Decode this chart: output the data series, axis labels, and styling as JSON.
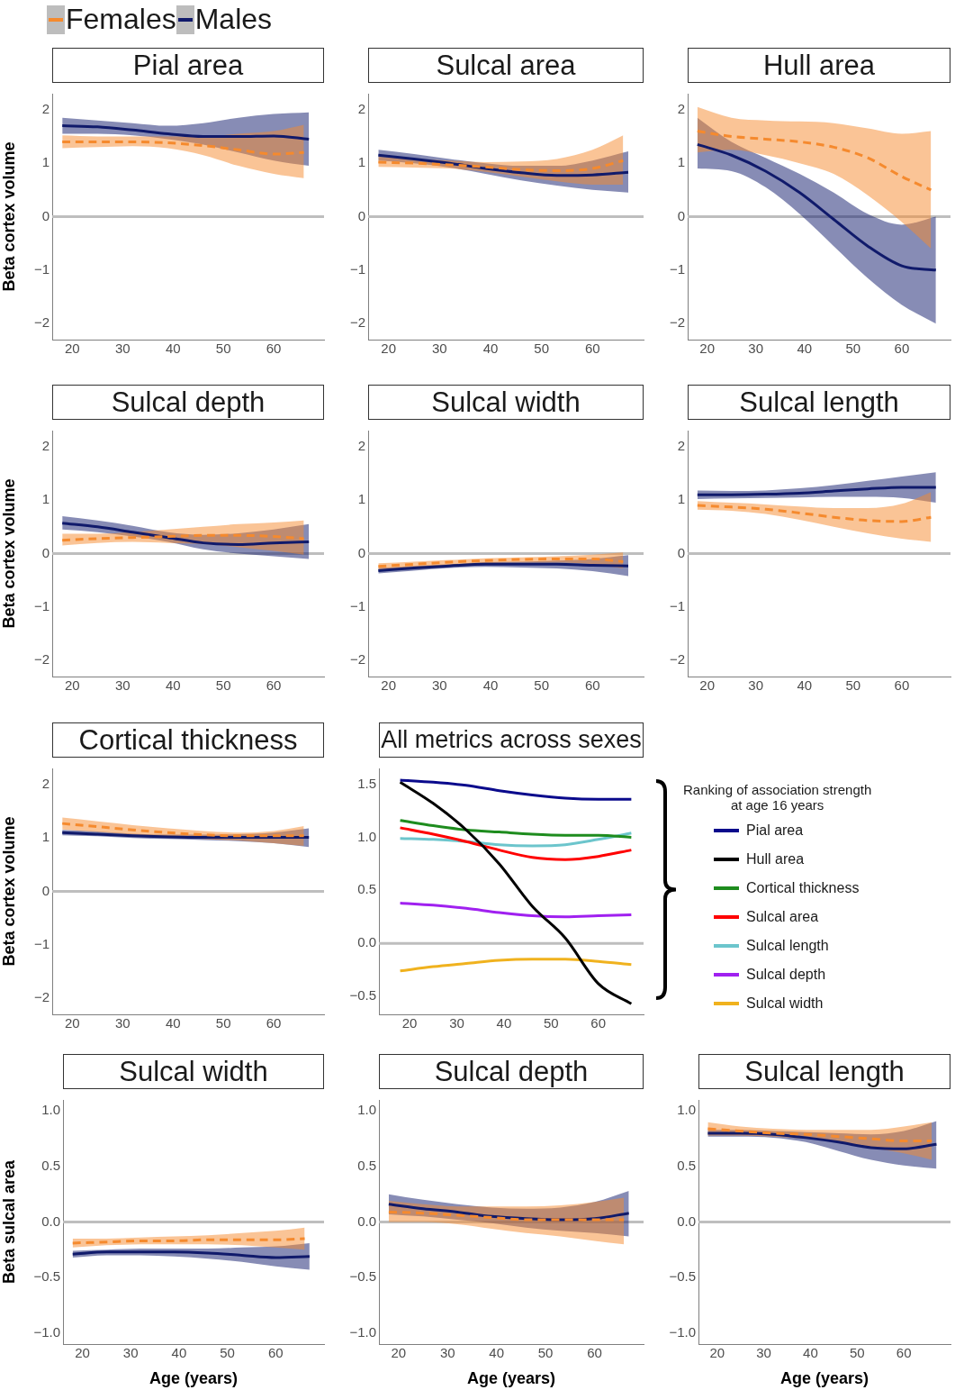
{
  "chart_data": [
    {
      "type": "line",
      "title": "Pial area",
      "ylabel": "Beta cortex volume",
      "legend": "top left",
      "marker": "none",
      "xlim": [
        16,
        70
      ],
      "xticks": [
        20,
        30,
        40,
        50,
        60
      ],
      "ylim": [
        -2.3,
        2.3
      ],
      "yticks": [
        {
          "value": -2,
          "label": "−2"
        },
        {
          "value": -1,
          "label": "−1"
        },
        0,
        1,
        2
      ],
      "ref_lines": [
        {
          "axis": "y",
          "value": 0,
          "color": "#bebebe"
        }
      ],
      "series": [
        {
          "name": "Females",
          "color": "#f58a2e",
          "line_style": "dashed",
          "x": [
            18,
            25,
            32,
            39,
            46,
            53,
            60,
            66
          ],
          "values": [
            1.4,
            1.4,
            1.4,
            1.38,
            1.33,
            1.25,
            1.17,
            1.2
          ],
          "lower": [
            1.28,
            1.3,
            1.32,
            1.28,
            1.15,
            0.95,
            0.8,
            0.72
          ],
          "upper": [
            1.52,
            1.5,
            1.5,
            1.5,
            1.5,
            1.55,
            1.6,
            1.72
          ]
        },
        {
          "name": "Males",
          "color": "#101a6b",
          "line_style": "solid",
          "x": [
            18,
            25,
            32,
            39,
            46,
            53,
            60,
            67
          ],
          "values": [
            1.7,
            1.68,
            1.62,
            1.55,
            1.5,
            1.5,
            1.51,
            1.45
          ],
          "lower": [
            1.55,
            1.55,
            1.52,
            1.45,
            1.35,
            1.2,
            1.05,
            0.95
          ],
          "upper": [
            1.85,
            1.8,
            1.75,
            1.7,
            1.75,
            1.85,
            1.92,
            1.95
          ]
        }
      ]
    },
    {
      "type": "line",
      "title": "Sulcal area",
      "marker": "none",
      "xlim": [
        16,
        70
      ],
      "xticks": [
        20,
        30,
        40,
        50,
        60
      ],
      "ylim": [
        -2.3,
        2.3
      ],
      "yticks": [
        {
          "value": -2,
          "label": "−2"
        },
        {
          "value": -1,
          "label": "−1"
        },
        0,
        1,
        2
      ],
      "ref_lines": [
        {
          "axis": "y",
          "value": 0,
          "color": "#bebebe"
        }
      ],
      "series": [
        {
          "color": "#f58a2e",
          "line_style": "dashed",
          "x": [
            18,
            25,
            32,
            39,
            46,
            53,
            60,
            66
          ],
          "values": [
            1.02,
            1.0,
            0.97,
            0.93,
            0.88,
            0.86,
            0.9,
            1.05
          ],
          "lower": [
            0.93,
            0.92,
            0.9,
            0.84,
            0.75,
            0.66,
            0.6,
            0.6
          ],
          "upper": [
            1.12,
            1.08,
            1.05,
            1.02,
            1.03,
            1.08,
            1.25,
            1.52
          ]
        },
        {
          "color": "#101a6b",
          "line_style": "solid",
          "x": [
            18,
            25,
            32,
            39,
            46,
            53,
            60,
            67
          ],
          "values": [
            1.15,
            1.08,
            1.0,
            0.9,
            0.82,
            0.77,
            0.78,
            0.83
          ],
          "lower": [
            1.05,
            1.0,
            0.92,
            0.8,
            0.68,
            0.58,
            0.5,
            0.45
          ],
          "upper": [
            1.25,
            1.17,
            1.08,
            1.0,
            0.95,
            0.95,
            1.05,
            1.22
          ]
        }
      ]
    },
    {
      "type": "line",
      "title": "Hull area",
      "marker": "none",
      "xlim": [
        16,
        70
      ],
      "xticks": [
        20,
        30,
        40,
        50,
        60
      ],
      "ylim": [
        -2.3,
        2.3
      ],
      "yticks": [
        {
          "value": -2,
          "label": "−2"
        },
        {
          "value": -1,
          "label": "−1"
        },
        0,
        1,
        2
      ],
      "ref_lines": [
        {
          "axis": "y",
          "value": 0,
          "color": "#bebebe"
        }
      ],
      "series": [
        {
          "color": "#f58a2e",
          "line_style": "dashed",
          "x": [
            18,
            25,
            32,
            39,
            46,
            53,
            60,
            66
          ],
          "values": [
            1.6,
            1.5,
            1.45,
            1.4,
            1.3,
            1.1,
            0.75,
            0.5
          ],
          "lower": [
            1.2,
            1.25,
            1.15,
            1.0,
            0.8,
            0.4,
            -0.1,
            -0.6
          ],
          "upper": [
            2.05,
            1.85,
            1.8,
            1.78,
            1.75,
            1.65,
            1.55,
            1.6
          ]
        },
        {
          "color": "#101a6b",
          "line_style": "solid",
          "x": [
            18,
            25,
            32,
            39,
            46,
            53,
            60,
            67
          ],
          "values": [
            1.35,
            1.15,
            0.85,
            0.45,
            -0.05,
            -0.55,
            -0.92,
            -1.0
          ],
          "lower": [
            0.9,
            0.85,
            0.55,
            0.05,
            -0.55,
            -1.15,
            -1.65,
            -2.0
          ],
          "upper": [
            1.85,
            1.4,
            1.1,
            0.8,
            0.45,
            0.05,
            -0.15,
            0.0
          ]
        }
      ]
    },
    {
      "type": "line",
      "title": "Sulcal depth",
      "ylabel": "Beta cortex volume",
      "marker": "none",
      "xlim": [
        16,
        70
      ],
      "xticks": [
        20,
        30,
        40,
        50,
        60
      ],
      "ylim": [
        -2.3,
        2.3
      ],
      "yticks": [
        {
          "value": -2,
          "label": "−2"
        },
        {
          "value": -1,
          "label": "−1"
        },
        0,
        1,
        2
      ],
      "ref_lines": [
        {
          "axis": "y",
          "value": 0,
          "color": "#bebebe"
        }
      ],
      "series": [
        {
          "color": "#f58a2e",
          "line_style": "dashed",
          "x": [
            18,
            25,
            32,
            39,
            46,
            53,
            60,
            66
          ],
          "values": [
            0.25,
            0.28,
            0.3,
            0.32,
            0.34,
            0.34,
            0.32,
            0.28
          ],
          "lower": [
            0.15,
            0.2,
            0.22,
            0.2,
            0.18,
            0.12,
            0.05,
            -0.02
          ],
          "upper": [
            0.37,
            0.37,
            0.4,
            0.45,
            0.5,
            0.55,
            0.58,
            0.62
          ]
        },
        {
          "color": "#101a6b",
          "line_style": "solid",
          "x": [
            18,
            25,
            32,
            39,
            46,
            53,
            60,
            67
          ],
          "values": [
            0.57,
            0.5,
            0.4,
            0.3,
            0.2,
            0.17,
            0.2,
            0.22
          ],
          "lower": [
            0.45,
            0.4,
            0.32,
            0.22,
            0.08,
            0.0,
            -0.05,
            -0.1
          ],
          "upper": [
            0.7,
            0.62,
            0.52,
            0.4,
            0.35,
            0.38,
            0.45,
            0.55
          ]
        }
      ]
    },
    {
      "type": "line",
      "title": "Sulcal width",
      "marker": "none",
      "xlim": [
        16,
        70
      ],
      "xticks": [
        20,
        30,
        40,
        50,
        60
      ],
      "ylim": [
        -2.3,
        2.3
      ],
      "yticks": [
        {
          "value": -2,
          "label": "−2"
        },
        {
          "value": -1,
          "label": "−1"
        },
        0,
        1,
        2
      ],
      "ref_lines": [
        {
          "axis": "y",
          "value": 0,
          "color": "#bebebe"
        }
      ],
      "series": [
        {
          "color": "#f58a2e",
          "line_style": "dashed",
          "x": [
            18,
            25,
            32,
            39,
            46,
            53,
            60,
            66
          ],
          "values": [
            -0.24,
            -0.2,
            -0.16,
            -0.13,
            -0.11,
            -0.1,
            -0.1,
            -0.15
          ],
          "lower": [
            -0.3,
            -0.26,
            -0.22,
            -0.18,
            -0.17,
            -0.17,
            -0.2,
            -0.28
          ],
          "upper": [
            -0.18,
            -0.15,
            -0.12,
            -0.09,
            -0.07,
            -0.05,
            -0.02,
            0.02
          ]
        },
        {
          "color": "#101a6b",
          "line_style": "solid",
          "x": [
            18,
            25,
            32,
            39,
            46,
            53,
            60,
            67
          ],
          "values": [
            -0.32,
            -0.27,
            -0.23,
            -0.2,
            -0.2,
            -0.2,
            -0.22,
            -0.23
          ],
          "lower": [
            -0.37,
            -0.32,
            -0.27,
            -0.25,
            -0.26,
            -0.28,
            -0.33,
            -0.42
          ],
          "upper": [
            -0.27,
            -0.23,
            -0.2,
            -0.16,
            -0.15,
            -0.13,
            -0.1,
            -0.03
          ]
        }
      ]
    },
    {
      "type": "line",
      "title": "Sulcal length",
      "marker": "none",
      "xlim": [
        16,
        70
      ],
      "xticks": [
        20,
        30,
        40,
        50,
        60
      ],
      "ylim": [
        -2.3,
        2.3
      ],
      "yticks": [
        {
          "value": -2,
          "label": "−2"
        },
        {
          "value": -1,
          "label": "−1"
        },
        0,
        1,
        2
      ],
      "ref_lines": [
        {
          "axis": "y",
          "value": 0,
          "color": "#bebebe"
        }
      ],
      "series": [
        {
          "color": "#f58a2e",
          "line_style": "dashed",
          "x": [
            18,
            25,
            32,
            39,
            46,
            53,
            60,
            66
          ],
          "values": [
            0.9,
            0.87,
            0.83,
            0.76,
            0.68,
            0.62,
            0.6,
            0.68
          ],
          "lower": [
            0.82,
            0.8,
            0.74,
            0.63,
            0.5,
            0.38,
            0.28,
            0.22
          ],
          "upper": [
            0.98,
            0.95,
            0.92,
            0.88,
            0.85,
            0.85,
            0.93,
            1.15
          ]
        },
        {
          "color": "#101a6b",
          "line_style": "solid",
          "x": [
            18,
            25,
            32,
            39,
            46,
            53,
            60,
            67
          ],
          "values": [
            1.1,
            1.1,
            1.11,
            1.13,
            1.17,
            1.21,
            1.24,
            1.24
          ],
          "lower": [
            1.02,
            1.03,
            1.04,
            1.05,
            1.06,
            1.06,
            1.04,
            0.95
          ],
          "upper": [
            1.18,
            1.17,
            1.18,
            1.22,
            1.28,
            1.36,
            1.44,
            1.52
          ]
        }
      ]
    },
    {
      "type": "line",
      "title": "Cortical thickness",
      "ylabel": "Beta cortex volume",
      "marker": "none",
      "xlim": [
        16,
        70
      ],
      "xticks": [
        20,
        30,
        40,
        50,
        60
      ],
      "ylim": [
        -2.3,
        2.3
      ],
      "yticks": [
        {
          "value": -2,
          "label": "−2"
        },
        {
          "value": -1,
          "label": "−1"
        },
        0,
        1,
        2
      ],
      "ref_lines": [
        {
          "axis": "y",
          "value": 0,
          "color": "#bebebe"
        }
      ],
      "series": [
        {
          "color": "#f58a2e",
          "line_style": "dashed",
          "x": [
            18,
            25,
            32,
            39,
            46,
            53,
            60,
            66
          ],
          "values": [
            1.27,
            1.21,
            1.15,
            1.1,
            1.06,
            1.04,
            1.04,
            1.04
          ],
          "lower": [
            1.16,
            1.11,
            1.06,
            1.02,
            0.98,
            0.95,
            0.9,
            0.85
          ],
          "upper": [
            1.38,
            1.31,
            1.24,
            1.18,
            1.13,
            1.1,
            1.13,
            1.22
          ]
        },
        {
          "color": "#101a6b",
          "line_style": "solid",
          "x": [
            18,
            25,
            32,
            39,
            46,
            53,
            60,
            67
          ],
          "values": [
            1.1,
            1.07,
            1.04,
            1.02,
            1.01,
            1.01,
            1.01,
            1.01
          ],
          "lower": [
            1.05,
            1.03,
            1.0,
            0.98,
            0.96,
            0.94,
            0.9,
            0.83
          ],
          "upper": [
            1.15,
            1.12,
            1.08,
            1.06,
            1.06,
            1.07,
            1.1,
            1.18
          ]
        }
      ]
    },
    {
      "type": "line",
      "title": "All metrics across sexes",
      "legend": "right",
      "legend_title": "Ranking of association strength\nat age 16 years",
      "marker": "none",
      "xlim": [
        13.5,
        69.6
      ],
      "xticks": [
        20,
        30,
        40,
        50,
        60
      ],
      "ylim": [
        -0.67,
        1.65
      ],
      "yticks": [
        {
          "value": -0.5,
          "label": "−0.5"
        },
        {
          "value": 0,
          "label": "0.0"
        },
        {
          "value": 0.5,
          "label": "0.5"
        },
        {
          "value": 1,
          "label": "1.0"
        },
        {
          "value": 1.5,
          "label": "1.5"
        }
      ],
      "ref_lines": [
        {
          "axis": "y",
          "value": 0,
          "color": "#bebebe"
        }
      ],
      "series": [
        {
          "name": "Pial area",
          "color": "#0a0a8c",
          "x": [
            18,
            25,
            32,
            39,
            46,
            53,
            60,
            67
          ],
          "values": [
            1.54,
            1.52,
            1.49,
            1.44,
            1.4,
            1.37,
            1.36,
            1.36
          ]
        },
        {
          "name": "Hull area",
          "color": "#000000",
          "x": [
            18,
            25,
            32,
            39,
            46,
            53,
            60,
            67
          ],
          "values": [
            1.52,
            1.32,
            1.07,
            0.75,
            0.35,
            0.05,
            -0.38,
            -0.57
          ]
        },
        {
          "name": "Cortical thickness",
          "color": "#1e8c1e",
          "x": [
            18,
            25,
            32,
            39,
            46,
            53,
            60,
            67
          ],
          "values": [
            1.16,
            1.11,
            1.07,
            1.05,
            1.03,
            1.02,
            1.02,
            1.0
          ]
        },
        {
          "name": "Sulcal area",
          "color": "#ff0000",
          "x": [
            18,
            25,
            32,
            39,
            46,
            53,
            60,
            67
          ],
          "values": [
            1.09,
            1.03,
            0.96,
            0.88,
            0.81,
            0.79,
            0.82,
            0.88
          ]
        },
        {
          "name": "Sulcal length",
          "color": "#6cc5cc",
          "x": [
            18,
            25,
            32,
            39,
            46,
            53,
            60,
            67
          ],
          "values": [
            0.99,
            0.98,
            0.96,
            0.93,
            0.92,
            0.93,
            0.98,
            1.04
          ]
        },
        {
          "name": "Sulcal depth",
          "color": "#a020f0",
          "x": [
            18,
            25,
            32,
            39,
            46,
            53,
            60,
            67
          ],
          "values": [
            0.38,
            0.36,
            0.33,
            0.29,
            0.26,
            0.25,
            0.26,
            0.27
          ]
        },
        {
          "name": "Sulcal width",
          "color": "#f0b21e",
          "x": [
            18,
            25,
            32,
            39,
            46,
            53,
            60,
            67
          ],
          "values": [
            -0.26,
            -0.22,
            -0.19,
            -0.16,
            -0.15,
            -0.15,
            -0.17,
            -0.2
          ]
        }
      ]
    },
    {
      "type": "line",
      "title": "Sulcal width",
      "ylabel": "Beta sulcal area",
      "xlabel": "Age (years)",
      "marker": "none",
      "xlim": [
        16,
        70
      ],
      "xticks": [
        20,
        30,
        40,
        50,
        60
      ],
      "ylim": [
        -1.1,
        1.1
      ],
      "yticks": [
        {
          "value": -1,
          "label": "−1.0"
        },
        {
          "value": -0.5,
          "label": "−0.5"
        },
        {
          "value": 0,
          "label": "0.0"
        },
        {
          "value": 0.5,
          "label": "0.5"
        },
        {
          "value": 1,
          "label": "1.0"
        }
      ],
      "ref_lines": [
        {
          "axis": "y",
          "value": 0,
          "color": "#bebebe"
        }
      ],
      "series": [
        {
          "color": "#f58a2e",
          "line_style": "dashed",
          "x": [
            18,
            25,
            32,
            39,
            46,
            53,
            60,
            66
          ],
          "values": [
            -0.19,
            -0.18,
            -0.17,
            -0.17,
            -0.16,
            -0.16,
            -0.16,
            -0.15
          ],
          "lower": [
            -0.23,
            -0.21,
            -0.2,
            -0.2,
            -0.2,
            -0.21,
            -0.23,
            -0.25
          ],
          "upper": [
            -0.15,
            -0.15,
            -0.14,
            -0.13,
            -0.12,
            -0.1,
            -0.08,
            -0.05
          ]
        },
        {
          "color": "#101a6b",
          "line_style": "solid",
          "x": [
            18,
            25,
            32,
            39,
            46,
            53,
            60,
            67
          ],
          "values": [
            -0.29,
            -0.27,
            -0.27,
            -0.27,
            -0.28,
            -0.3,
            -0.32,
            -0.31
          ],
          "lower": [
            -0.32,
            -0.3,
            -0.3,
            -0.31,
            -0.33,
            -0.36,
            -0.4,
            -0.43
          ],
          "upper": [
            -0.26,
            -0.25,
            -0.24,
            -0.24,
            -0.24,
            -0.23,
            -0.22,
            -0.19
          ]
        }
      ]
    },
    {
      "type": "line",
      "title": "Sulcal depth",
      "xlabel": "Age (years)",
      "marker": "none",
      "xlim": [
        16,
        70
      ],
      "xticks": [
        20,
        30,
        40,
        50,
        60
      ],
      "ylim": [
        -1.1,
        1.1
      ],
      "yticks": [
        {
          "value": -1,
          "label": "−1.0"
        },
        {
          "value": -0.5,
          "label": "−0.5"
        },
        {
          "value": 0,
          "label": "0.0"
        },
        {
          "value": 0.5,
          "label": "0.5"
        },
        {
          "value": 1,
          "label": "1.0"
        }
      ],
      "ref_lines": [
        {
          "axis": "y",
          "value": 0,
          "color": "#bebebe"
        }
      ],
      "series": [
        {
          "color": "#f58a2e",
          "line_style": "dashed",
          "x": [
            18,
            25,
            32,
            39,
            46,
            53,
            60,
            66
          ],
          "values": [
            0.09,
            0.08,
            0.06,
            0.04,
            0.02,
            0.02,
            0.02,
            0.02
          ],
          "lower": [
            0.0,
            0.0,
            -0.02,
            -0.06,
            -0.1,
            -0.13,
            -0.17,
            -0.2
          ],
          "upper": [
            0.19,
            0.16,
            0.14,
            0.14,
            0.14,
            0.15,
            0.18,
            0.22
          ]
        },
        {
          "color": "#101a6b",
          "line_style": "solid",
          "x": [
            18,
            25,
            32,
            39,
            46,
            53,
            60,
            67
          ],
          "values": [
            0.16,
            0.12,
            0.09,
            0.05,
            0.03,
            0.02,
            0.03,
            0.08
          ],
          "lower": [
            0.07,
            0.05,
            0.02,
            -0.01,
            -0.05,
            -0.08,
            -0.1,
            -0.13
          ],
          "upper": [
            0.25,
            0.2,
            0.16,
            0.13,
            0.12,
            0.13,
            0.18,
            0.28
          ]
        }
      ]
    },
    {
      "type": "line",
      "title": "Sulcal length",
      "xlabel": "Age (years)",
      "marker": "none",
      "xlim": [
        16,
        70
      ],
      "xticks": [
        20,
        30,
        40,
        50,
        60
      ],
      "ylim": [
        -1.1,
        1.1
      ],
      "yticks": [
        {
          "value": -1,
          "label": "−1.0"
        },
        {
          "value": -0.5,
          "label": "−0.5"
        },
        {
          "value": 0,
          "label": "0.0"
        },
        {
          "value": 0.5,
          "label": "0.5"
        },
        {
          "value": 1,
          "label": "1.0"
        }
      ],
      "ref_lines": [
        {
          "axis": "y",
          "value": 0,
          "color": "#bebebe"
        }
      ],
      "series": [
        {
          "color": "#f58a2e",
          "line_style": "dashed",
          "x": [
            18,
            25,
            32,
            39,
            46,
            53,
            60,
            66
          ],
          "values": [
            0.84,
            0.82,
            0.8,
            0.79,
            0.77,
            0.75,
            0.73,
            0.73
          ],
          "lower": [
            0.78,
            0.78,
            0.77,
            0.75,
            0.72,
            0.67,
            0.62,
            0.56
          ],
          "upper": [
            0.9,
            0.86,
            0.84,
            0.83,
            0.83,
            0.83,
            0.86,
            0.9
          ]
        },
        {
          "color": "#101a6b",
          "line_style": "solid",
          "x": [
            18,
            25,
            32,
            39,
            46,
            53,
            60,
            67
          ],
          "values": [
            0.8,
            0.8,
            0.79,
            0.76,
            0.72,
            0.67,
            0.66,
            0.7
          ],
          "lower": [
            0.77,
            0.77,
            0.76,
            0.72,
            0.64,
            0.56,
            0.51,
            0.48
          ],
          "upper": [
            0.83,
            0.83,
            0.82,
            0.81,
            0.8,
            0.79,
            0.82,
            0.91
          ]
        }
      ]
    }
  ]
}
